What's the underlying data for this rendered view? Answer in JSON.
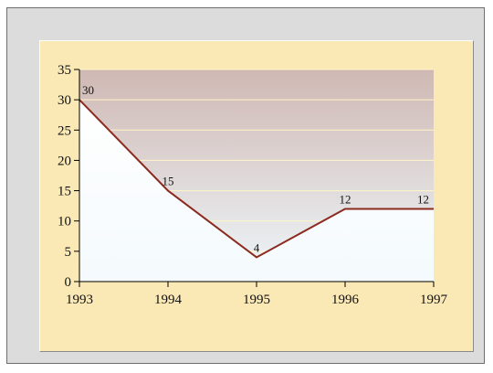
{
  "colors": {
    "line": "#8b2a1e",
    "plot_top": "#cfb8b3",
    "plot_bottom": "#eef7fb",
    "area_fill": "#f4fafd",
    "grid": "#fff6c8",
    "frame": "#fbe9b5"
  },
  "chart_data": {
    "type": "area",
    "title": "",
    "xlabel": "",
    "ylabel": "",
    "x": [
      "1993",
      "1994",
      "1995",
      "1996",
      "1997"
    ],
    "series": [
      {
        "values": [
          30,
          15,
          4,
          12,
          12
        ]
      }
    ],
    "data_labels": [
      "30",
      "15",
      "4",
      "12",
      "12"
    ],
    "ylim": [
      0,
      35
    ],
    "y_ticks": [
      "0",
      "5",
      "10",
      "15",
      "20",
      "25",
      "30",
      "35"
    ],
    "grid": true,
    "legend": "none"
  }
}
